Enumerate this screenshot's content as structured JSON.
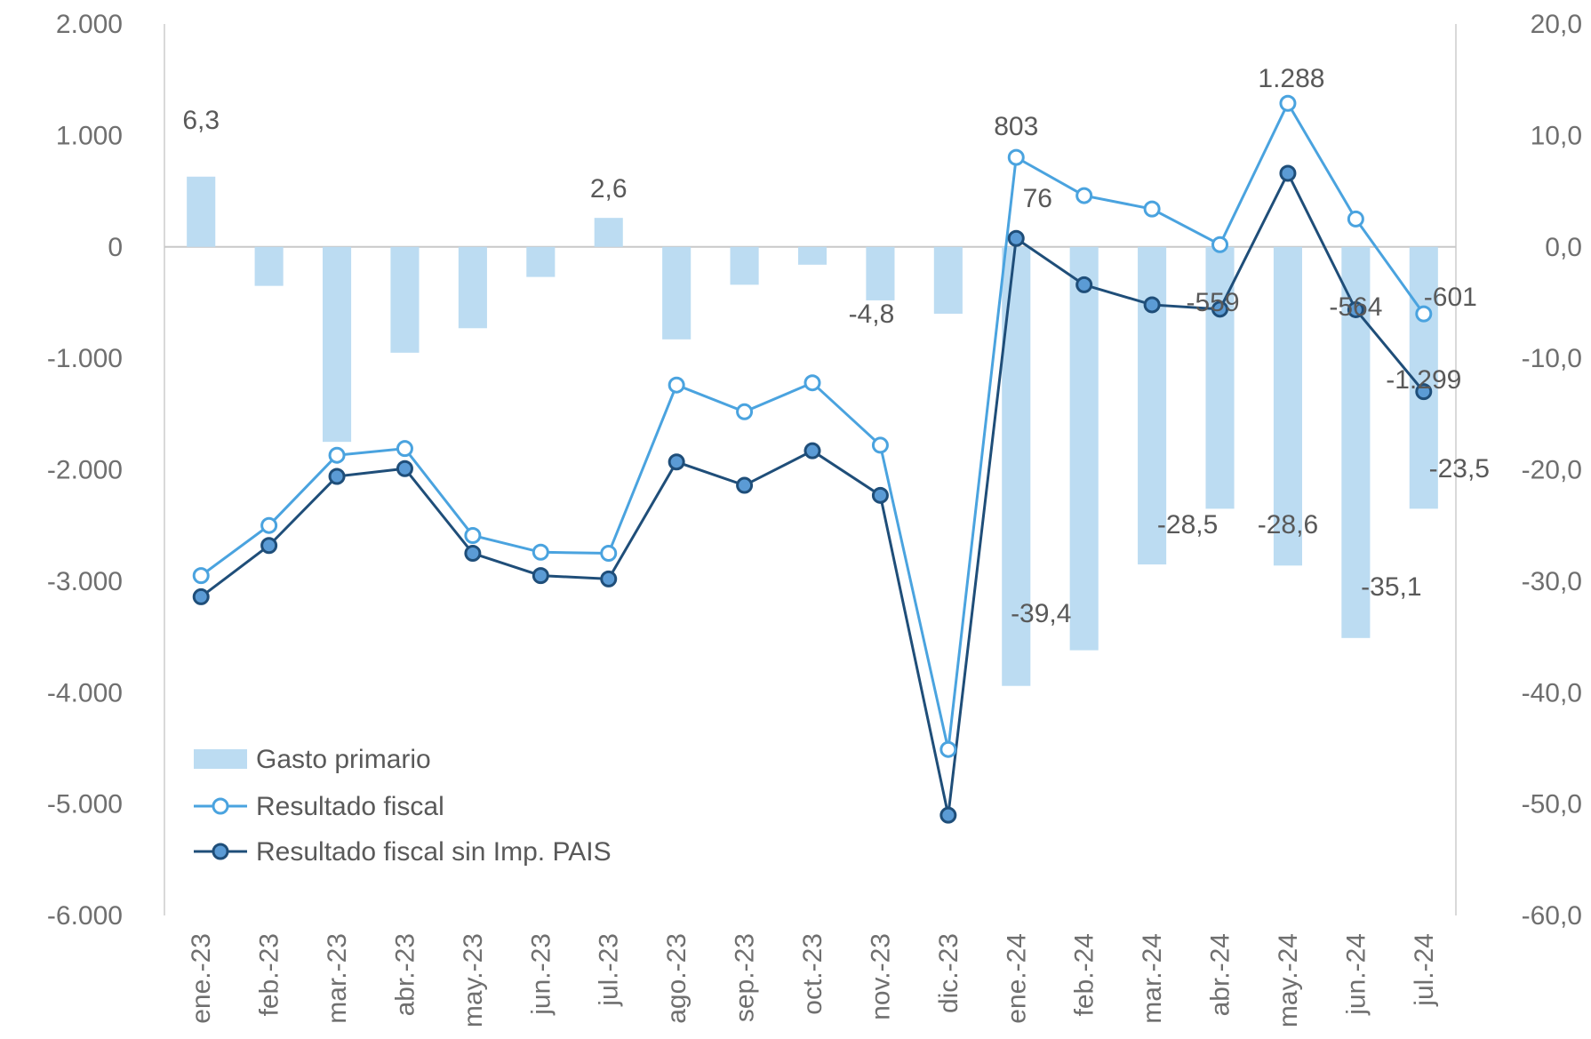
{
  "chart_data": {
    "type": "bar+line",
    "categories": [
      "ene.-23",
      "feb.-23",
      "mar.-23",
      "abr.-23",
      "may.-23",
      "jun.-23",
      "jul.-23",
      "ago.-23",
      "sep.-23",
      "oct.-23",
      "nov.-23",
      "dic.-23",
      "ene.-24",
      "feb.-24",
      "mar.-24",
      "abr.-24",
      "may.-24",
      "jun.-24",
      "jul.-24"
    ],
    "left_axis": {
      "range": [
        -6000,
        2000
      ],
      "ticks": [
        "2.000",
        "1.000",
        "0",
        "-1.000",
        "-2.000",
        "-3.000",
        "-4.000",
        "-5.000",
        "-6.000"
      ],
      "tick_values": [
        2000,
        1000,
        0,
        -1000,
        -2000,
        -3000,
        -4000,
        -5000,
        -6000
      ]
    },
    "right_axis": {
      "range": [
        -60,
        20
      ],
      "ticks": [
        "20,0",
        "10,0",
        "0,0",
        "-10,0",
        "-20,0",
        "-30,0",
        "-40,0",
        "-50,0",
        "-60,0"
      ],
      "tick_values": [
        20,
        10,
        0,
        -10,
        -20,
        -30,
        -40,
        -50,
        -60
      ]
    },
    "grid": false,
    "legend_placement": "bottom-left",
    "series": [
      {
        "name": "Gasto primario",
        "kind": "bar",
        "axis": "right",
        "color": "#bcdcf2",
        "values": [
          6.3,
          -3.5,
          -17.5,
          -9.5,
          -7.3,
          -2.7,
          2.6,
          -8.3,
          -3.4,
          -1.6,
          -4.8,
          -6.0,
          -39.4,
          -36.2,
          -28.5,
          -23.5,
          -28.6,
          -35.1,
          -23.5
        ],
        "data_labels": {
          "0": "6,3",
          "6": "2,6",
          "10": "-4,8",
          "12": "-39,4",
          "14": "-28,5",
          "16": "-28,6",
          "17": "-35,1",
          "18": "-23,5"
        }
      },
      {
        "name": "Resultado fiscal",
        "kind": "line",
        "axis": "left",
        "color": "#4aa3df",
        "marker_fill": "#ffffff",
        "values": [
          -2950,
          -2500,
          -1870,
          -1810,
          -2590,
          -2740,
          -2750,
          -1240,
          -1480,
          -1220,
          -1780,
          -4510,
          803,
          460,
          340,
          20,
          1288,
          250,
          -601
        ],
        "data_labels": {
          "12": "803",
          "16": "1.288",
          "18": "-601"
        }
      },
      {
        "name": "Resultado fiscal sin Imp. PAIS",
        "kind": "line",
        "axis": "left",
        "color": "#1f4e79",
        "marker_fill": "#5b9bd5",
        "values": [
          -3140,
          -2680,
          -2060,
          -1990,
          -2750,
          -2950,
          -2980,
          -1930,
          -2140,
          -1830,
          -2230,
          -5100,
          76,
          -340,
          -520,
          -559,
          660,
          -564,
          -1299
        ],
        "data_labels": {
          "12": "76",
          "15": "-559",
          "17": "-564",
          "18": "-1.299"
        }
      }
    ]
  }
}
